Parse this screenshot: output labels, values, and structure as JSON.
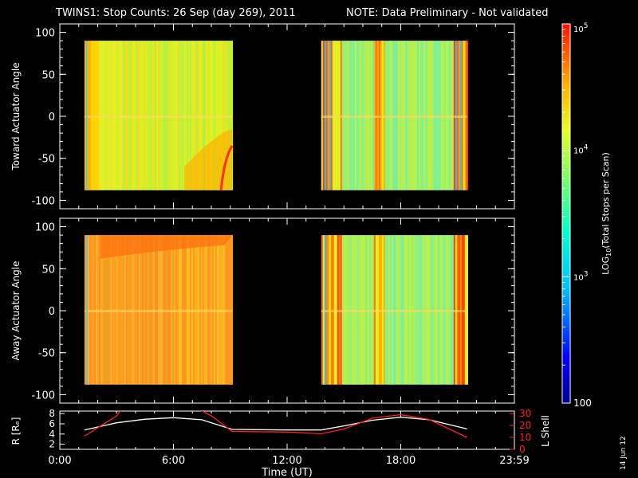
{
  "header": {
    "title": "TWINS1: Stop Counts: 26 Sep (day 269), 2011",
    "note": "NOTE: Data Preliminary - Not validated",
    "note_color": "#ff2020"
  },
  "side_date": "14 Jun 12",
  "chart_data": [
    {
      "type": "heatmap",
      "ylabel": "Toward Actuator Angle",
      "yticks": [
        100,
        50,
        0,
        -50,
        -100
      ],
      "ylim": [
        -110,
        110
      ],
      "xlim_hours": [
        0,
        24
      ],
      "data_y_range": [
        -88,
        90
      ],
      "data_blocks_hours": [
        [
          1.3,
          9.1
        ],
        [
          13.8,
          21.5
        ]
      ]
    },
    {
      "type": "heatmap",
      "ylabel": "Away Actuator Angle",
      "yticks": [
        100,
        50,
        0,
        -50,
        -100
      ],
      "ylim": [
        -110,
        110
      ],
      "xlim_hours": [
        0,
        24
      ],
      "data_y_range": [
        -88,
        90
      ],
      "data_blocks_hours": [
        [
          1.3,
          9.1
        ],
        [
          13.8,
          21.5
        ]
      ]
    },
    {
      "type": "line",
      "ylabel_left": "R [Rₑ]",
      "ylabel_right": "L Shell",
      "right_color": "#ff2020",
      "yticks_left": [
        8,
        6,
        4,
        2
      ],
      "ylim_left": [
        1,
        8.5
      ],
      "yticks_right": [
        30,
        20,
        10,
        0
      ],
      "ylim_right": [
        0,
        32
      ],
      "series": [
        {
          "axis": "left",
          "color": "#ffffff",
          "x": [
            1.3,
            3,
            4.5,
            6,
            7.5,
            9.1,
            12,
            13.8,
            15,
            16.5,
            18,
            19.5,
            21.5
          ],
          "values": [
            4.8,
            6.2,
            6.9,
            7.2,
            6.8,
            4.9,
            4.8,
            4.8,
            5.6,
            6.7,
            7.3,
            6.8,
            5.0
          ]
        },
        {
          "axis": "right",
          "color": "#ff2020",
          "x": [
            1.3,
            3.0,
            3.3,
            7.3,
            8.0,
            9.1,
            12,
            13.8,
            15,
            16.5,
            18,
            19.5,
            21.5
          ],
          "values": [
            11,
            28,
            34,
            34,
            28,
            15,
            14.5,
            13,
            17,
            26,
            29,
            25,
            10
          ]
        }
      ],
      "xticks": [
        "0:00",
        "6:00",
        "12:00",
        "18:00",
        "23:59"
      ],
      "xticks_hours": [
        0,
        6,
        12,
        18,
        24
      ],
      "xlabel": "Time (UT)"
    }
  ],
  "colorbar": {
    "label_prefix": "LOG",
    "label_sub": "10",
    "label_suffix": "(Total Stops per Scan)",
    "ticks": [
      {
        "base": "10",
        "exp": "5",
        "value": 100000
      },
      {
        "base": "10",
        "exp": "4",
        "value": 10000
      },
      {
        "base": "10",
        "exp": "3",
        "value": 1000
      },
      {
        "base": "100",
        "exp": "",
        "value": 100
      }
    ],
    "range": [
      100,
      100000
    ]
  }
}
